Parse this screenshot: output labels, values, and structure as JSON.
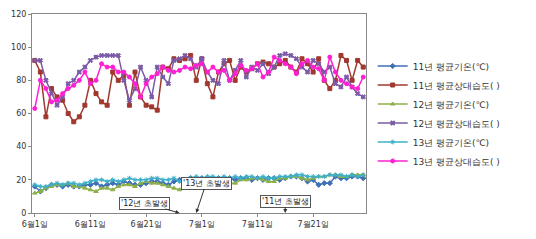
{
  "chart_data": {
    "type": "line",
    "categories": [
      "6월1일",
      null,
      null,
      null,
      null,
      null,
      null,
      null,
      null,
      null,
      "6월11일",
      null,
      null,
      null,
      null,
      null,
      null,
      null,
      null,
      null,
      "6월21일",
      null,
      null,
      null,
      null,
      null,
      null,
      null,
      null,
      null,
      "7월1일",
      null,
      null,
      null,
      null,
      null,
      null,
      null,
      null,
      null,
      "7월11일",
      null,
      null,
      null,
      null,
      null,
      null,
      null,
      null,
      null,
      "7월21일",
      null,
      null,
      null,
      null,
      null,
      null,
      null,
      null,
      null
    ],
    "series": [
      {
        "name": "11년 평균기온(℃)",
        "color": "#3f6fb5",
        "marker": "diamond",
        "values": [
          16,
          13,
          15,
          17,
          17,
          16,
          17,
          16,
          16,
          17,
          17,
          18,
          16,
          17,
          18,
          17,
          19,
          18,
          17,
          17,
          18,
          19,
          19,
          18,
          17,
          19,
          20,
          20,
          21,
          20,
          21,
          21,
          20,
          21,
          21,
          21,
          20,
          21,
          21,
          20,
          21,
          20,
          21,
          21,
          20,
          21,
          22,
          22,
          21,
          19,
          20,
          17,
          18,
          18,
          22,
          21,
          21,
          22,
          22,
          21
        ]
      },
      {
        "name": "11년 평균상대습도( )",
        "color": "#a0382f",
        "marker": "square",
        "values": [
          92,
          85,
          58,
          75,
          70,
          68,
          60,
          55,
          58,
          65,
          80,
          72,
          67,
          65,
          85,
          80,
          83,
          65,
          85,
          70,
          65,
          64,
          62,
          88,
          87,
          93,
          92,
          93,
          95,
          80,
          93,
          78,
          70,
          85,
          90,
          92,
          80,
          88,
          85,
          87,
          90,
          91,
          90,
          88,
          90,
          92,
          88,
          85,
          93,
          90,
          85,
          93,
          80,
          75,
          80,
          95,
          92,
          80,
          92,
          88
        ]
      },
      {
        "name": "12년 평균기온(℃)",
        "color": "#8db04a",
        "marker": "triangle-up",
        "values": [
          12,
          13,
          15,
          16,
          17,
          17,
          18,
          16,
          16,
          15,
          14,
          13,
          15,
          15,
          14,
          16,
          17,
          17,
          16,
          18,
          19,
          18,
          18,
          17,
          16,
          15,
          14,
          15,
          18,
          19,
          20,
          20,
          21,
          20,
          19,
          18,
          18,
          20,
          20,
          21,
          21,
          20,
          19,
          19,
          21,
          21,
          22,
          22,
          21,
          20,
          21,
          22,
          22,
          23,
          23,
          22,
          22,
          23,
          23,
          23
        ]
      },
      {
        "name": "12년 평균상대습도( )",
        "color": "#7a5aa6",
        "marker": "x",
        "values": [
          92,
          92,
          80,
          72,
          65,
          70,
          78,
          80,
          85,
          88,
          92,
          94,
          95,
          95,
          95,
          95,
          80,
          68,
          75,
          88,
          80,
          70,
          88,
          82,
          78,
          92,
          93,
          95,
          93,
          88,
          93,
          85,
          80,
          78,
          92,
          80,
          86,
          92,
          82,
          88,
          86,
          90,
          84,
          88,
          95,
          96,
          95,
          93,
          88,
          85,
          92,
          90,
          85,
          88,
          78,
          76,
          82,
          76,
          72,
          70
        ]
      },
      {
        "name": "13년 평균기온(℃)",
        "color": "#3fb0c9",
        "marker": "asterisk-open",
        "values": [
          17,
          16,
          16,
          17,
          18,
          17,
          18,
          18,
          17,
          18,
          19,
          20,
          20,
          19,
          20,
          19,
          20,
          21,
          20,
          20,
          20,
          21,
          21,
          20,
          20,
          21,
          19,
          20,
          21,
          22,
          21,
          22,
          22,
          21,
          22,
          21,
          22,
          21,
          22,
          22,
          21,
          22,
          21,
          21,
          22,
          22,
          22,
          23,
          23,
          22,
          22,
          22,
          22,
          23,
          23,
          23,
          22,
          23,
          22,
          23
        ]
      },
      {
        "name": "13년 평균상대습도( )",
        "color": "#ff1fd2",
        "marker": "circle",
        "values": [
          63,
          80,
          75,
          67,
          68,
          72,
          75,
          77,
          80,
          85,
          78,
          80,
          90,
          88,
          88,
          85,
          85,
          82,
          78,
          70,
          78,
          82,
          84,
          88,
          86,
          85,
          86,
          88,
          87,
          89,
          90,
          85,
          88,
          85,
          86,
          80,
          84,
          89,
          86,
          87,
          90,
          82,
          85,
          94,
          92,
          90,
          88,
          84,
          90,
          92,
          88,
          87,
          80,
          94,
          85,
          80,
          78,
          76,
          75,
          82
        ]
      }
    ],
    "annotations": [
      "'12년 초발생",
      "'13년 초발생",
      "'11년 초발생"
    ],
    "ylim": [
      0,
      120
    ],
    "yticks": [
      0,
      20,
      40,
      60,
      80,
      100,
      120
    ],
    "grid": false,
    "legend": "right"
  }
}
